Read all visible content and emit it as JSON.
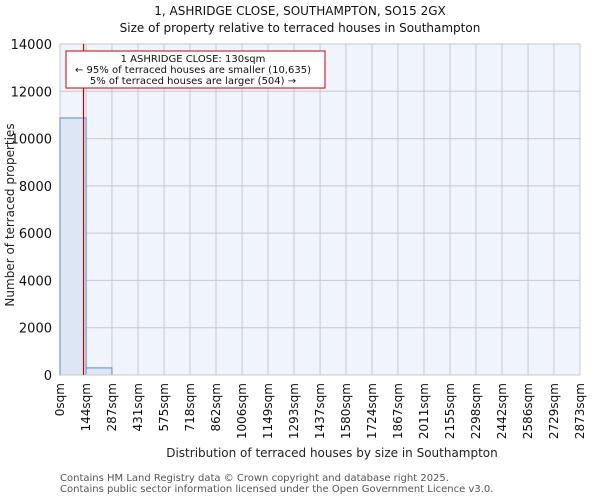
{
  "header": {
    "title": "1, ASHRIDGE CLOSE, SOUTHAMPTON, SO15 2GX",
    "subtitle": "Size of property relative to terraced houses in Southampton"
  },
  "annotation": {
    "line1": "1 ASHRIDGE CLOSE: 130sqm",
    "line2": "← 95% of terraced houses are smaller (10,635)",
    "line3": "5% of terraced houses are larger (504) →",
    "marker_value": 130,
    "marker_color": "#cc0000"
  },
  "footer": {
    "line1": "Contains HM Land Registry data © Crown copyright and database right 2025.",
    "line2": "Contains public sector information licensed under the Open Government Licence v3.0."
  },
  "colors": {
    "plot_background": "#f0f4fc",
    "bar_fill": "#dce6f4",
    "bar_edge": "#5a8ac6",
    "grid": "#c8c8c8",
    "marker": "#cc0000"
  },
  "chart_data": {
    "type": "bar",
    "title": "1, ASHRIDGE CLOSE, SOUTHAMPTON, SO15 2GX",
    "subtitle": "Size of property relative to terraced houses in Southampton",
    "xlabel": "Distribution of terraced houses by size in Southampton",
    "ylabel": "Number of terraced properties",
    "categories": [
      "0sqm",
      "144sqm",
      "287sqm",
      "431sqm",
      "575sqm",
      "718sqm",
      "862sqm",
      "1006sqm",
      "1149sqm",
      "1293sqm",
      "1437sqm",
      "1580sqm",
      "1724sqm",
      "1867sqm",
      "2011sqm",
      "2155sqm",
      "2298sqm",
      "2442sqm",
      "2586sqm",
      "2729sqm",
      "2873sqm"
    ],
    "bin_edges": [
      0,
      144,
      287,
      431,
      575,
      718,
      862,
      1006,
      1149,
      1293,
      1437,
      1580,
      1724,
      1867,
      2011,
      2155,
      2298,
      2442,
      2586,
      2729,
      2873
    ],
    "values": [
      10870,
      300,
      0,
      0,
      0,
      0,
      0,
      0,
      0,
      0,
      0,
      0,
      0,
      0,
      0,
      0,
      0,
      0,
      0,
      0
    ],
    "yticks": [
      0,
      2000,
      4000,
      6000,
      8000,
      10000,
      12000,
      14000
    ],
    "ylim": [
      0,
      14000
    ],
    "grid": true,
    "marker_line": {
      "x": 130,
      "label": "1 ASHRIDGE CLOSE: 130sqm"
    },
    "annotations": [
      "1 ASHRIDGE CLOSE: 130sqm",
      "← 95% of terraced houses are smaller (10,635)",
      "5% of terraced houses are larger (504) →"
    ]
  }
}
